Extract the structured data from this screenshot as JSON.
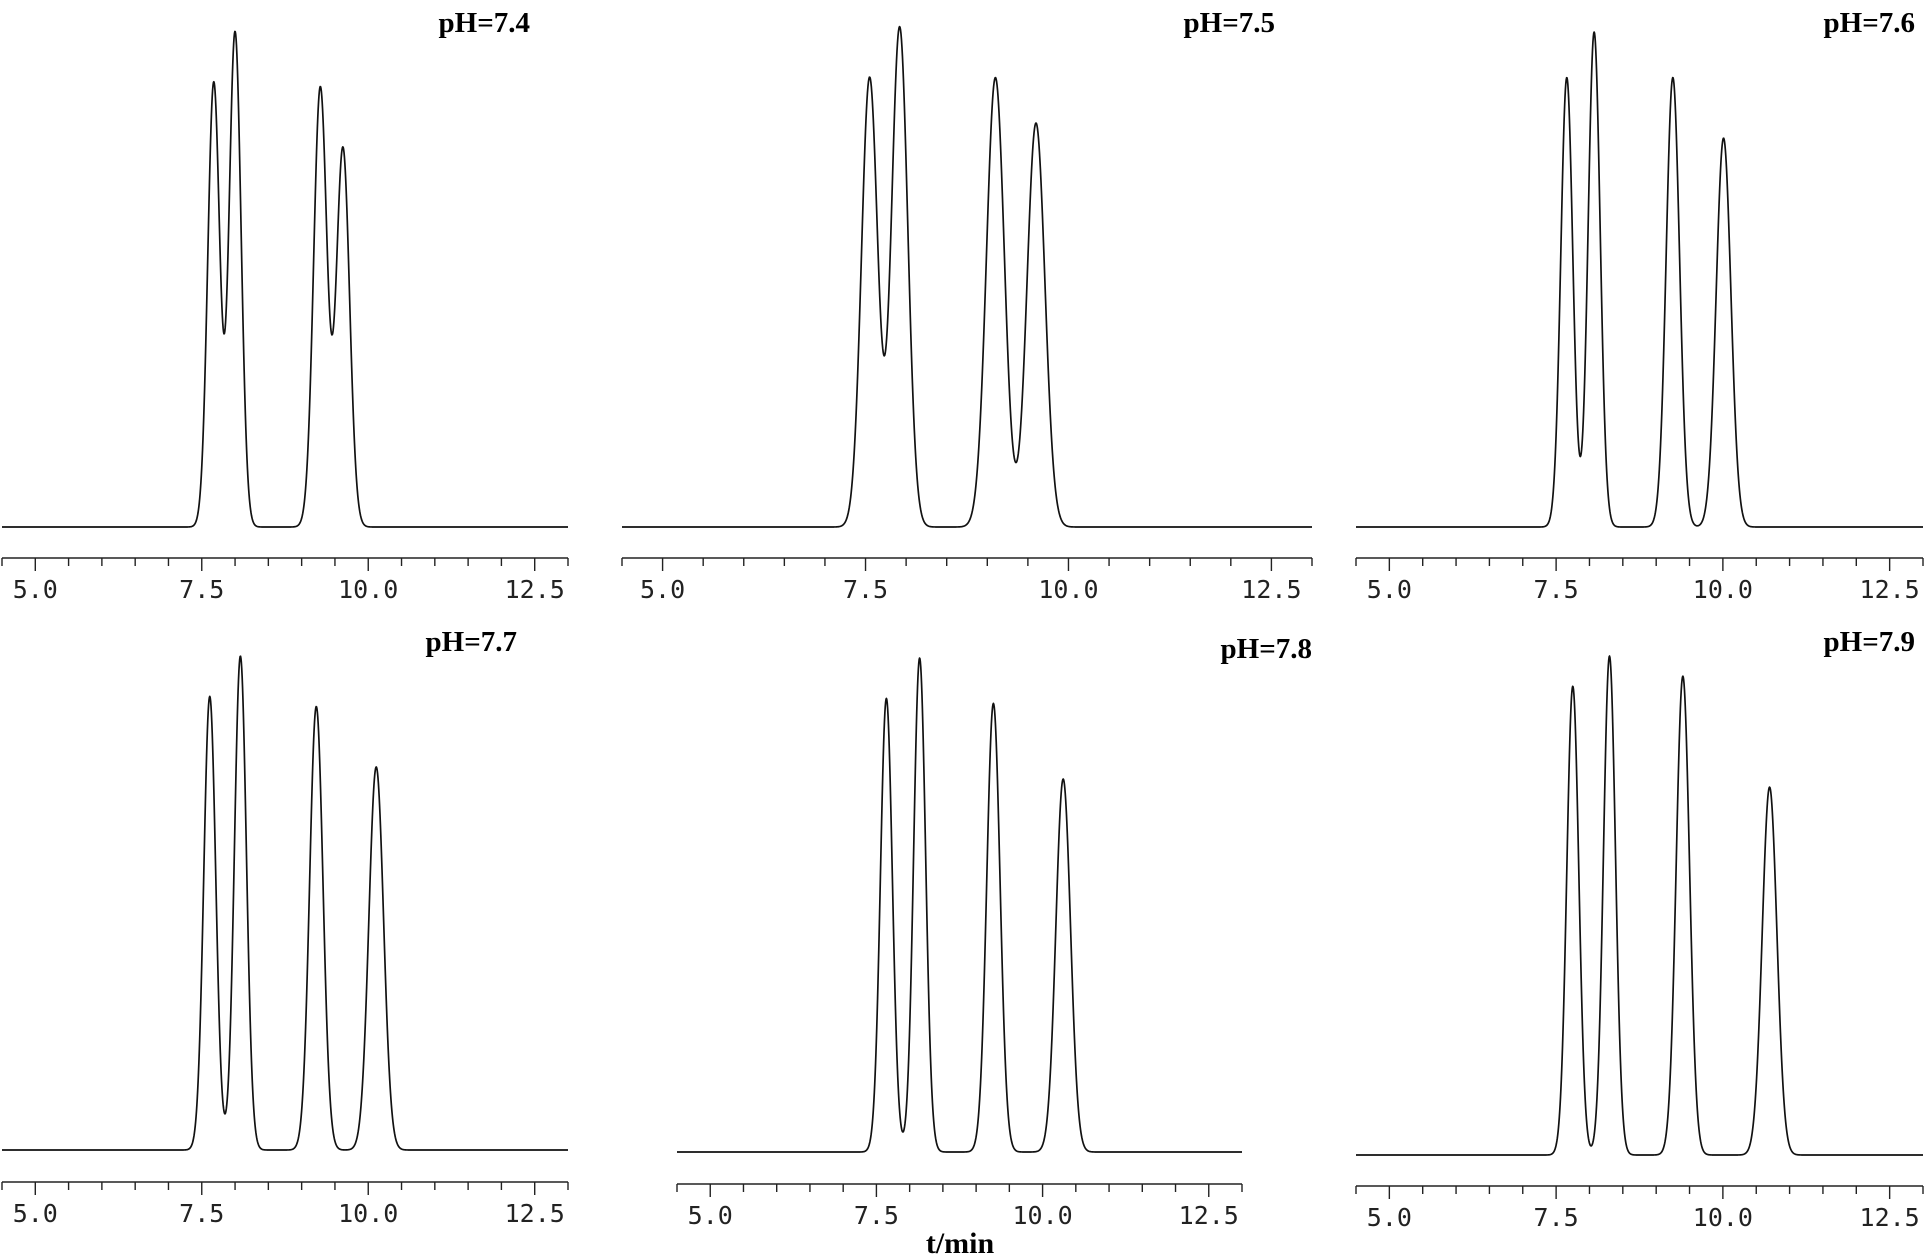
{
  "chart_data": {
    "type": "line",
    "xlabel": "t/min",
    "xlim": [
      4.5,
      13.0
    ],
    "xticks": [
      5.0,
      7.5,
      10.0,
      12.5
    ],
    "xtick_labels": [
      "5.0",
      "7.5",
      "10.0",
      "12.5"
    ],
    "minor_tick_step": 0.5,
    "y_axis_visible": false,
    "grid": false,
    "line_color": "#111111",
    "panels": [
      {
        "title": "pH=7.4",
        "peaks": [
          {
            "rt": 7.68,
            "height": 0.88,
            "width": 0.09
          },
          {
            "rt": 8.0,
            "height": 0.98,
            "width": 0.09
          },
          {
            "rt": 9.28,
            "height": 0.87,
            "width": 0.1
          },
          {
            "rt": 9.62,
            "height": 0.75,
            "width": 0.1
          }
        ]
      },
      {
        "title": "pH=7.5",
        "peaks": [
          {
            "rt": 7.55,
            "height": 0.89,
            "width": 0.1
          },
          {
            "rt": 7.92,
            "height": 0.99,
            "width": 0.1
          },
          {
            "rt": 9.1,
            "height": 0.89,
            "width": 0.11
          },
          {
            "rt": 9.6,
            "height": 0.8,
            "width": 0.11
          }
        ]
      },
      {
        "title": "pH=7.6",
        "peaks": [
          {
            "rt": 7.66,
            "height": 0.89,
            "width": 0.09
          },
          {
            "rt": 8.07,
            "height": 0.98,
            "width": 0.09
          },
          {
            "rt": 9.25,
            "height": 0.89,
            "width": 0.1
          },
          {
            "rt": 10.01,
            "height": 0.77,
            "width": 0.11
          }
        ]
      },
      {
        "title": "pH=7.7",
        "peaks": [
          {
            "rt": 7.62,
            "height": 0.9,
            "width": 0.09
          },
          {
            "rt": 8.08,
            "height": 0.98,
            "width": 0.09
          },
          {
            "rt": 9.22,
            "height": 0.88,
            "width": 0.1
          },
          {
            "rt": 10.12,
            "height": 0.76,
            "width": 0.11
          }
        ]
      },
      {
        "title": "pH=7.8",
        "peaks": [
          {
            "rt": 7.65,
            "height": 0.9,
            "width": 0.09
          },
          {
            "rt": 8.15,
            "height": 0.98,
            "width": 0.09
          },
          {
            "rt": 9.26,
            "height": 0.89,
            "width": 0.1
          },
          {
            "rt": 10.31,
            "height": 0.74,
            "width": 0.11
          }
        ]
      },
      {
        "title": "pH=7.9",
        "peaks": [
          {
            "rt": 7.75,
            "height": 0.93,
            "width": 0.09
          },
          {
            "rt": 8.3,
            "height": 0.99,
            "width": 0.09
          },
          {
            "rt": 9.4,
            "height": 0.95,
            "width": 0.1
          },
          {
            "rt": 10.7,
            "height": 0.73,
            "width": 0.11
          }
        ]
      }
    ]
  }
}
